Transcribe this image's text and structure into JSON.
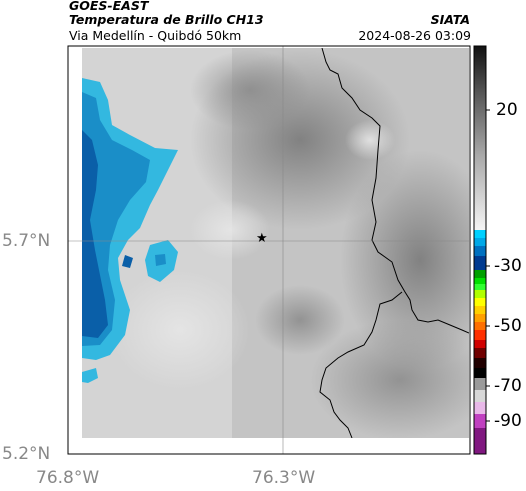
{
  "header": {
    "satellite": "GOES-EAST",
    "product": "Temperatura de Brillo CH13",
    "region": "Via Medellín - Quibdó 50km",
    "brand": "SIATA",
    "timestamp": "2024-08-26 03:09"
  },
  "axes": {
    "x_ticks": [
      {
        "label": "76.8°W",
        "lon": -76.8
      },
      {
        "label": "76.3°W",
        "lon": -76.3
      }
    ],
    "y_ticks": [
      {
        "label": "5.7°N",
        "lat": 5.7
      },
      {
        "label": "5.2°N",
        "lat": 5.2
      }
    ]
  },
  "marker": {
    "symbol": "★",
    "name": "target-location"
  },
  "colorbar": {
    "ticks": [
      "20",
      "-30",
      "-50",
      "-70",
      "-90"
    ],
    "palette_colors": [
      "#00c8ff",
      "#0050a0",
      "#00a000",
      "#ffff00",
      "#ff8000",
      "#ff0000",
      "#000000",
      "#a020a0"
    ]
  }
}
